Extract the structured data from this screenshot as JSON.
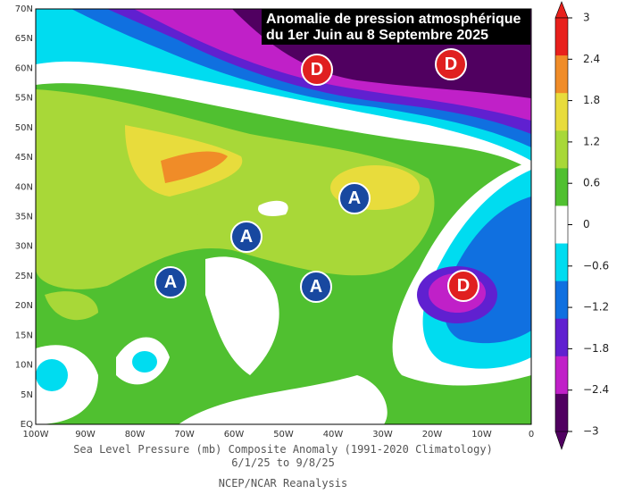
{
  "title": [
    "Anomalie de pression atmosphérique",
    "du 1er Juin au 8 Septembre 2025"
  ],
  "lat_labels": [
    "70N",
    "65N",
    "60N",
    "55N",
    "50N",
    "45N",
    "40N",
    "35N",
    "30N",
    "25N",
    "20N",
    "15N",
    "10N",
    "5N",
    "EQ"
  ],
  "lon_labels": [
    "100W",
    "90W",
    "80W",
    "70W",
    "60W",
    "50W",
    "40W",
    "30W",
    "20W",
    "10W",
    "0"
  ],
  "colorbar": {
    "ticks": [
      3,
      2.4,
      1.8,
      1.2,
      0.6,
      0,
      {
        "value": -0.6,
        "label": "−0.6"
      },
      {
        "value": -1.2,
        "label": "−1.2"
      },
      {
        "value": -1.8,
        "label": "−1.8"
      },
      {
        "value": -2.4,
        "label": "−2.4"
      },
      {
        "value": -3,
        "label": "−3"
      }
    ]
  },
  "markers": [
    {
      "label": "D"
    },
    {
      "label": "D"
    },
    {
      "label": "D"
    },
    {
      "label": "A"
    },
    {
      "label": "A"
    },
    {
      "label": "A"
    },
    {
      "label": "A"
    }
  ],
  "caption": [
    "Sea Level Pressure (mb) Composite Anomaly (1991-2020 Climatology)",
    "6/1/25  to 9/8/25",
    "NCEP/NCAR Reanalysis"
  ]
}
